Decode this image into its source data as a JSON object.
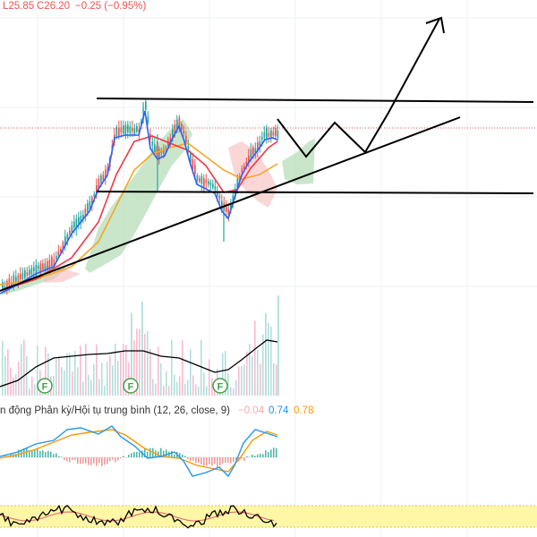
{
  "ohlc_bar": {
    "low": "L25.85",
    "close": "C26.20",
    "change": "−0.25 (−0.95%)"
  },
  "macd": {
    "label": "n động Phân kỳ/Hội tụ trung bình (12, 26, close, 9)",
    "histogram_value": "−0.04",
    "macd_value": "0.74",
    "signal_value": "0.78"
  },
  "volume": {
    "markers": [
      "F",
      "F",
      "F"
    ]
  },
  "colors": {
    "bull": "#26a69a",
    "bear": "#ef5350",
    "ma_fast": "#2962ff",
    "ma_mid": "#f23645",
    "ma_slow": "#f5a623",
    "cloud_bull": "#a5d6a7",
    "cloud_bear": "#f8bbbb",
    "macd_line": "#2196f3",
    "signal_line": "#ff9800",
    "rsi_band": "#fff59d",
    "drawing": "#000000"
  }
}
